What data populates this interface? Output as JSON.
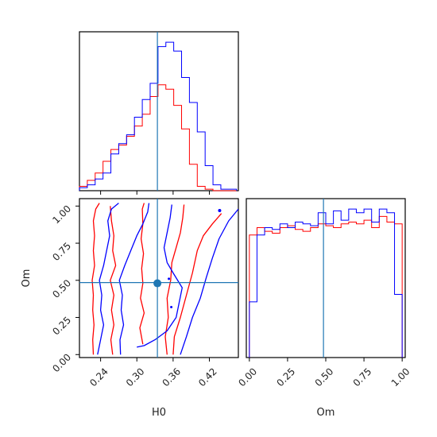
{
  "chart_data": {
    "type": "corner",
    "parameters": [
      "H0",
      "Om"
    ],
    "truth": {
      "H0": 0.334,
      "Om": 0.485
    },
    "series_colors": {
      "a": "#ff0000",
      "b": "#0000ff"
    },
    "truth_color": "#1f77b4",
    "panels": [
      {
        "id": "hist-h0",
        "type": "histogram",
        "xlim": [
          0.205,
          0.468
        ],
        "bins_edges": [
          0.205,
          0.218,
          0.231,
          0.244,
          0.257,
          0.27,
          0.283,
          0.296,
          0.309,
          0.322,
          0.335,
          0.348,
          0.361,
          0.374,
          0.387,
          0.4,
          0.413,
          0.426,
          0.439,
          0.452,
          0.465
        ],
        "series": [
          {
            "color": "#ff0000",
            "counts": [
              3,
              7,
              12,
              20,
              28,
              31,
              37,
              44,
              52,
              64,
              72,
              69,
              58,
              42,
              18,
              3,
              1,
              0,
              0,
              0
            ]
          },
          {
            "color": "#0000ff",
            "counts": [
              2,
              4,
              8,
              12,
              25,
              32,
              38,
              50,
              62,
              73,
              98,
              101,
              95,
              77,
              60,
              40,
              17,
              4,
              1,
              1
            ]
          }
        ]
      },
      {
        "id": "hist-om",
        "type": "histogram",
        "xlim": [
          -0.02,
          1.02
        ],
        "bins_edges": [
          0.0,
          0.05,
          0.1,
          0.15,
          0.2,
          0.25,
          0.3,
          0.35,
          0.4,
          0.45,
          0.5,
          0.55,
          0.6,
          0.65,
          0.7,
          0.75,
          0.8,
          0.85,
          0.9,
          0.95,
          1.0
        ],
        "series": [
          {
            "color": "#ff0000",
            "counts": [
              66,
              70,
              68,
              67,
              70,
              71,
              69,
              68,
              70,
              72,
              71,
              70,
              72,
              73,
              72,
              74,
              70,
              76,
              73,
              72
            ]
          },
          {
            "color": "#0000ff",
            "counts": [
              30,
              66,
              70,
              69,
              72,
              70,
              73,
              72,
              71,
              78,
              72,
              79,
              74,
              80,
              78,
              80,
              73,
              80,
              78,
              34
            ]
          }
        ]
      },
      {
        "id": "contour-h0-om",
        "type": "contour",
        "xlim": [
          0.205,
          0.468
        ],
        "ylim": [
          -0.02,
          1.05
        ],
        "series": [
          {
            "color": "#ff0000",
            "paths": [
              [
                [
                  0.228,
                  0.0
                ],
                [
                  0.227,
                  0.1
                ],
                [
                  0.229,
                  0.2
                ],
                [
                  0.227,
                  0.3
                ],
                [
                  0.228,
                  0.4
                ],
                [
                  0.226,
                  0.5
                ],
                [
                  0.23,
                  0.6
                ],
                [
                  0.228,
                  0.7
                ],
                [
                  0.23,
                  0.8
                ],
                [
                  0.228,
                  0.9
                ],
                [
                  0.232,
                  0.98
                ],
                [
                  0.238,
                  1.02
                ]
              ],
              [
                [
                  0.26,
                  0.0
                ],
                [
                  0.257,
                  0.1
                ],
                [
                  0.262,
                  0.2
                ],
                [
                  0.258,
                  0.3
                ],
                [
                  0.262,
                  0.4
                ],
                [
                  0.256,
                  0.5
                ],
                [
                  0.265,
                  0.6
                ],
                [
                  0.26,
                  0.7
                ],
                [
                  0.262,
                  0.8
                ],
                [
                  0.258,
                  0.9
                ],
                [
                  0.256,
                  1.0
                ]
              ],
              [
                [
                  0.31,
                  0.07
                ],
                [
                  0.305,
                  0.18
                ],
                [
                  0.312,
                  0.28
                ],
                [
                  0.306,
                  0.38
                ],
                [
                  0.31,
                  0.48
                ],
                [
                  0.308,
                  0.58
                ],
                [
                  0.311,
                  0.68
                ],
                [
                  0.307,
                  0.78
                ],
                [
                  0.31,
                  0.88
                ],
                [
                  0.309,
                  0.98
                ],
                [
                  0.312,
                  1.02
                ]
              ],
              [
                [
                  0.35,
                  0.0
                ],
                [
                  0.347,
                  0.12
                ],
                [
                  0.352,
                  0.25
                ],
                [
                  0.35,
                  0.38
                ],
                [
                  0.356,
                  0.5
                ],
                [
                  0.358,
                  0.62
                ],
                [
                  0.365,
                  0.72
                ],
                [
                  0.372,
                  0.82
                ],
                [
                  0.376,
                  0.92
                ],
                [
                  0.378,
                  1.01
                ]
              ],
              [
                [
                  0.36,
                  0.0
                ],
                [
                  0.362,
                  0.12
                ],
                [
                  0.372,
                  0.25
                ],
                [
                  0.382,
                  0.4
                ],
                [
                  0.392,
                  0.55
                ],
                [
                  0.4,
                  0.7
                ],
                [
                  0.41,
                  0.8
                ],
                [
                  0.425,
                  0.88
                ],
                [
                  0.44,
                  0.95
                ]
              ]
            ]
          },
          {
            "color": "#0000ff",
            "paths": [
              [
                [
                  0.235,
                  0.0
                ],
                [
                  0.24,
                  0.1
                ],
                [
                  0.245,
                  0.2
                ],
                [
                  0.24,
                  0.3
                ],
                [
                  0.242,
                  0.4
                ],
                [
                  0.238,
                  0.5
                ],
                [
                  0.245,
                  0.6
                ],
                [
                  0.25,
                  0.7
                ],
                [
                  0.255,
                  0.8
                ],
                [
                  0.252,
                  0.9
                ],
                [
                  0.258,
                  0.98
                ],
                [
                  0.27,
                  1.02
                ]
              ],
              [
                [
                  0.273,
                  0.0
                ],
                [
                  0.272,
                  0.1
                ],
                [
                  0.278,
                  0.2
                ],
                [
                  0.274,
                  0.3
                ],
                [
                  0.276,
                  0.4
                ],
                [
                  0.271,
                  0.5
                ],
                [
                  0.28,
                  0.6
                ],
                [
                  0.29,
                  0.7
                ],
                [
                  0.3,
                  0.8
                ],
                [
                  0.31,
                  0.88
                ],
                [
                  0.318,
                  0.96
                ],
                [
                  0.32,
                  1.02
                ]
              ],
              [
                [
                  0.3,
                  0.05
                ],
                [
                  0.312,
                  0.06
                ],
                [
                  0.33,
                  0.1
                ],
                [
                  0.35,
                  0.16
                ],
                [
                  0.365,
                  0.25
                ],
                [
                  0.37,
                  0.35
                ],
                [
                  0.375,
                  0.45
                ],
                [
                  0.36,
                  0.55
                ],
                [
                  0.35,
                  0.62
                ],
                [
                  0.345,
                  0.72
                ],
                [
                  0.35,
                  0.82
                ],
                [
                  0.355,
                  0.92
                ],
                [
                  0.358,
                  1.01
                ]
              ],
              [
                [
                  0.372,
                  0.0
                ],
                [
                  0.382,
                  0.12
                ],
                [
                  0.392,
                  0.25
                ],
                [
                  0.405,
                  0.38
                ],
                [
                  0.415,
                  0.52
                ],
                [
                  0.425,
                  0.65
                ],
                [
                  0.436,
                  0.78
                ],
                [
                  0.452,
                  0.9
                ],
                [
                  0.468,
                  0.98
                ]
              ]
            ]
          }
        ],
        "points": [
          {
            "x": 0.334,
            "y": 0.48,
            "color": "#1f77b4",
            "size": 5
          },
          {
            "x": 0.437,
            "y": 0.97,
            "color": "#0000ff",
            "size": 2
          },
          {
            "x": 0.357,
            "y": 0.32,
            "color": "#0000ff",
            "size": 1.5
          },
          {
            "x": 0.353,
            "y": 0.51,
            "color": "#0000ff",
            "size": 1.5
          }
        ]
      }
    ],
    "x_ticks": {
      "H0": [
        "0.24",
        "0.30",
        "0.36",
        "0.42"
      ],
      "Om": [
        "0.00",
        "0.25",
        "0.50",
        "0.75",
        "1.00"
      ]
    },
    "y_ticks": {
      "Om": [
        "0.00",
        "0.25",
        "0.50",
        "0.75",
        "1.00"
      ]
    },
    "xlabels": {
      "H0": "H0",
      "Om": "Om"
    },
    "ylabel": "Om"
  }
}
